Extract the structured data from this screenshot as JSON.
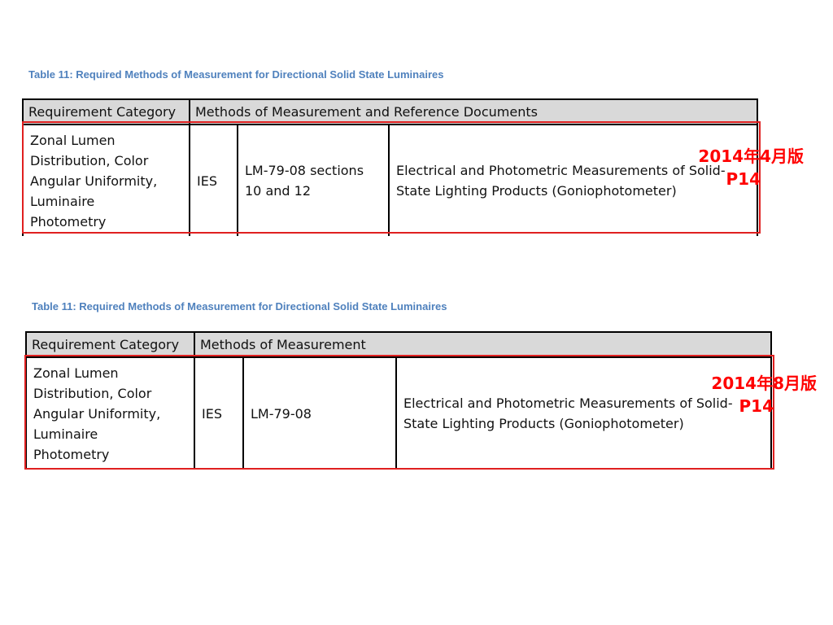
{
  "table_1": {
    "caption": "Table 11: Required Methods of Measurement for Directional Solid State Luminaires",
    "header_category": "Requirement Category",
    "header_methods": "Methods of Measurement and Reference Documents",
    "row": {
      "category": "Zonal Lumen\nDistribution, Color\nAngular Uniformity,\nLuminaire\nPhotometry",
      "org": "IES",
      "method": "LM-79-08 sections\n10 and 12",
      "reference": "Electrical and Photometric Measurements of Solid-\nState Lighting Products (Goniophotometer)"
    },
    "annotation": {
      "version": "2014年4月版",
      "page": "P14"
    }
  },
  "table_2": {
    "caption": "Table 11: Required Methods of Measurement for Directional Solid State Luminaires",
    "header_category": "Requirement Category",
    "header_methods": "Methods of Measurement",
    "row": {
      "category": "Zonal Lumen\nDistribution, Color\nAngular Uniformity,\nLuminaire\nPhotometry",
      "org": "IES",
      "method": "LM-79-08",
      "reference": "Electrical and Photometric Measurements of Solid-\nState Lighting Products (Goniophotometer)"
    },
    "annotation": {
      "version": "2014年8月版",
      "page": "P14"
    }
  },
  "colors": {
    "caption_blue": "#4f81bd",
    "header_gray": "#d9d9d9",
    "annotation_red": "#ff0000"
  }
}
